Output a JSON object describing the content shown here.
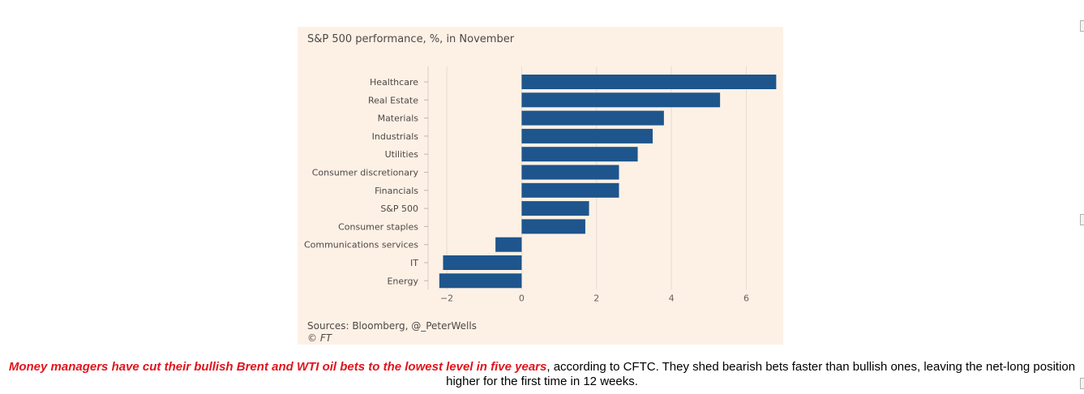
{
  "chart_data": {
    "type": "bar",
    "orientation": "horizontal",
    "title": "S&P 500 performance, %, in November",
    "categories": [
      "Healthcare",
      "Real Estate",
      "Materials",
      "Industrials",
      "Utilities",
      "Consumer discretionary",
      "Financials",
      "S&P 500",
      "Consumer staples",
      "Communications services",
      "IT",
      "Energy"
    ],
    "values": [
      6.8,
      5.3,
      3.8,
      3.5,
      3.1,
      2.6,
      2.6,
      1.8,
      1.7,
      -0.7,
      -2.1,
      -2.2
    ],
    "xticks": [
      -2,
      0,
      2,
      4,
      6
    ],
    "xlim": [
      -2.5,
      6.9
    ],
    "xlabel": "",
    "ylabel": "",
    "grid": "vertical",
    "bar_color": "#1e558c",
    "source": "Sources: Bloomberg, @_PeterWells",
    "copyright": "© FT"
  },
  "caption": {
    "lead": "Money managers have cut their bullish Brent and WTI oil bets to the lowest level in five years",
    "rest": ", according to CFTC. They shed bearish bets faster than bullish ones, leaving the net-long position higher for the first time in 12 weeks."
  },
  "colors": {
    "panel_background": "#fdf1e6",
    "caption_highlight": "#e0141c"
  }
}
